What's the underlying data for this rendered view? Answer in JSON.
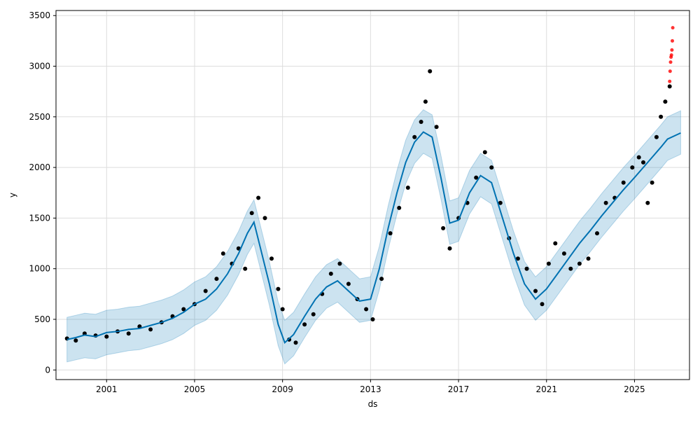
{
  "chart_data": {
    "type": "scatter",
    "title": "",
    "xlabel": "ds",
    "ylabel": "y",
    "x_ticks": [
      "2001",
      "2005",
      "2009",
      "2013",
      "2017",
      "2021",
      "2025"
    ],
    "x_tick_years": [
      2001,
      2005,
      2009,
      2013,
      2017,
      2021,
      2025
    ],
    "y_ticks": [
      0,
      500,
      1000,
      1500,
      2000,
      2500,
      3000,
      3500
    ],
    "xlim": [
      1998.7,
      2027.5
    ],
    "ylim": [
      -95,
      3550
    ],
    "grid": true,
    "colors": {
      "observed": "#000000",
      "forecast_line": "#0072B2",
      "interval": "#0072B2",
      "recent_outliers": "#ff0000"
    },
    "forecast": {
      "x": [
        1999.2,
        1999.6,
        2000.0,
        2000.5,
        2001.0,
        2001.5,
        2002.0,
        2002.5,
        2003.0,
        2003.5,
        2004.0,
        2004.5,
        2005.0,
        2005.5,
        2006.0,
        2006.5,
        2007.0,
        2007.4,
        2007.7,
        2008.0,
        2008.4,
        2008.8,
        2009.1,
        2009.5,
        2010.0,
        2010.5,
        2011.0,
        2011.5,
        2012.0,
        2012.5,
        2013.0,
        2013.4,
        2013.8,
        2014.2,
        2014.6,
        2015.0,
        2015.4,
        2015.8,
        2016.2,
        2016.6,
        2017.0,
        2017.5,
        2018.0,
        2018.5,
        2019.0,
        2019.5,
        2020.0,
        2020.5,
        2021.0,
        2021.5,
        2022.0,
        2022.5,
        2023.0,
        2023.5,
        2024.0,
        2024.5,
        2025.0,
        2025.4,
        2025.8,
        2026.2,
        2026.5,
        2027.1
      ],
      "yhat": [
        300,
        320,
        345,
        330,
        370,
        380,
        400,
        410,
        440,
        470,
        510,
        570,
        650,
        700,
        800,
        950,
        1150,
        1350,
        1460,
        1200,
        850,
        450,
        270,
        350,
        530,
        700,
        820,
        880,
        780,
        680,
        700,
        1000,
        1400,
        1750,
        2050,
        2250,
        2350,
        2300,
        1900,
        1450,
        1480,
        1750,
        1920,
        1850,
        1500,
        1150,
        850,
        700,
        800,
        950,
        1100,
        1250,
        1380,
        1520,
        1650,
        1780,
        1900,
        2000,
        2100,
        2200,
        2280,
        2340
      ],
      "lower": [
        80,
        100,
        120,
        110,
        150,
        170,
        190,
        200,
        230,
        260,
        300,
        360,
        440,
        490,
        590,
        740,
        940,
        1140,
        1250,
        990,
        640,
        240,
        60,
        140,
        320,
        490,
        610,
        670,
        570,
        470,
        490,
        790,
        1190,
        1540,
        1840,
        2040,
        2140,
        2090,
        1690,
        1240,
        1270,
        1540,
        1710,
        1640,
        1290,
        940,
        640,
        490,
        590,
        740,
        890,
        1040,
        1170,
        1310,
        1440,
        1570,
        1690,
        1790,
        1890,
        1990,
        2070,
        2130
      ],
      "upper": [
        520,
        540,
        560,
        550,
        590,
        600,
        620,
        630,
        660,
        690,
        730,
        790,
        870,
        920,
        1020,
        1170,
        1370,
        1570,
        1680,
        1420,
        1070,
        670,
        490,
        570,
        750,
        920,
        1040,
        1100,
        1000,
        900,
        920,
        1220,
        1620,
        1970,
        2270,
        2470,
        2570,
        2520,
        2120,
        1670,
        1700,
        1970,
        2140,
        2070,
        1720,
        1370,
        1070,
        920,
        1020,
        1170,
        1320,
        1470,
        1600,
        1740,
        1870,
        2000,
        2120,
        2220,
        2320,
        2420,
        2500,
        2560
      ]
    },
    "observed": {
      "x": [
        1999.2,
        1999.6,
        2000.0,
        2000.5,
        2001.0,
        2001.5,
        2002.0,
        2002.5,
        2003.0,
        2003.5,
        2004.0,
        2004.5,
        2005.0,
        2005.5,
        2006.0,
        2006.3,
        2006.7,
        2007.0,
        2007.3,
        2007.6,
        2007.9,
        2008.2,
        2008.5,
        2008.8,
        2009.0,
        2009.3,
        2009.6,
        2010.0,
        2010.4,
        2010.8,
        2011.2,
        2011.6,
        2012.0,
        2012.4,
        2012.8,
        2013.1,
        2013.5,
        2013.9,
        2014.3,
        2014.7,
        2015.0,
        2015.3,
        2015.5,
        2015.7,
        2016.0,
        2016.3,
        2016.6,
        2017.0,
        2017.4,
        2017.8,
        2018.2,
        2018.5,
        2018.9,
        2019.3,
        2019.7,
        2020.1,
        2020.5,
        2020.8,
        2021.1,
        2021.4,
        2021.8,
        2022.1,
        2022.5,
        2022.9,
        2023.3,
        2023.7,
        2024.1,
        2024.5,
        2024.9,
        2025.2,
        2025.4,
        2025.6,
        2025.8,
        2026.0,
        2026.2,
        2026.4,
        2026.6
      ],
      "y": [
        310,
        290,
        360,
        340,
        330,
        380,
        360,
        430,
        400,
        470,
        530,
        600,
        650,
        780,
        900,
        1150,
        1050,
        1200,
        1000,
        1550,
        1700,
        1500,
        1100,
        800,
        600,
        300,
        270,
        450,
        550,
        750,
        950,
        1050,
        850,
        700,
        600,
        500,
        900,
        1350,
        1600,
        1800,
        2300,
        2450,
        2650,
        2950,
        2400,
        1400,
        1200,
        1500,
        1650,
        1900,
        2150,
        2000,
        1650,
        1300,
        1100,
        1000,
        780,
        650,
        1050,
        1250,
        1150,
        1000,
        1050,
        1100,
        1350,
        1650,
        1700,
        1850,
        2000,
        2100,
        2050,
        1650,
        1850,
        2300,
        2500,
        2650,
        2800
      ]
    },
    "recent_outliers": {
      "x": [
        2026.6,
        2026.62,
        2026.64,
        2026.66,
        2026.68,
        2026.7,
        2026.72,
        2026.74
      ],
      "y": [
        2850,
        2950,
        3040,
        3090,
        3110,
        3160,
        3250,
        3380
      ]
    }
  }
}
